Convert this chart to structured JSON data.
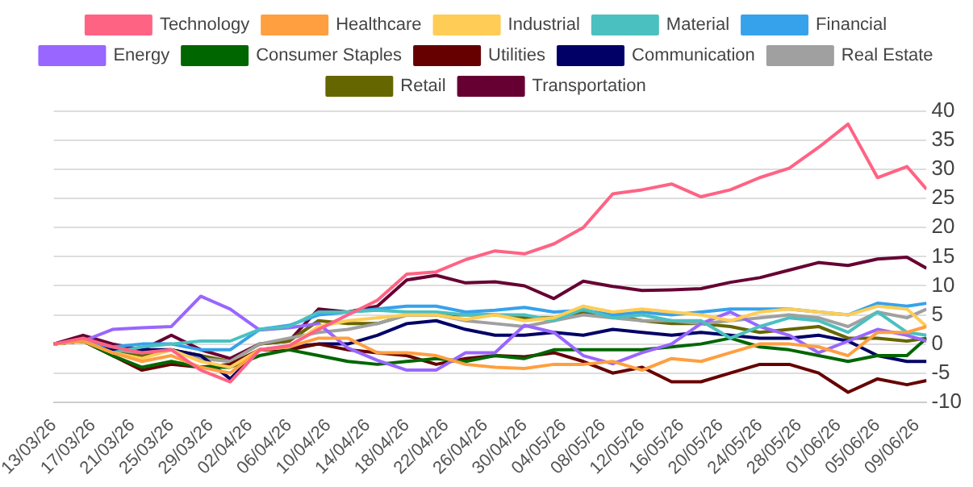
{
  "chart_data": {
    "type": "line",
    "x": [
      "--03-13",
      "--03-16",
      "--03-19",
      "--03-22",
      "--03-25",
      "--03-28",
      "--03-31",
      "--04-03",
      "--04-06",
      "--04-09",
      "--04-12",
      "--04-15",
      "--04-18",
      "--04-21",
      "--04-24",
      "--04-27",
      "--04-30",
      "--05-03",
      "--05-06",
      "--05-09",
      "--05-12",
      "--05-15",
      "--05-18",
      "--05-21",
      "--05-24",
      "--05-27",
      "--05-30",
      "--06-02",
      "--06-05",
      "--06-08",
      "--06-10"
    ],
    "series": [
      {
        "name": "Technology",
        "color": "#ff6384",
        "values": [
          0,
          1,
          -0.5,
          -1.5,
          -1,
          -4.5,
          -6.5,
          -1,
          -0.3,
          2.5,
          5,
          7.5,
          12,
          12.4,
          14.5,
          16,
          15.5,
          17.2,
          20,
          25.8,
          26.5,
          27.5,
          25.3,
          26.5,
          28.6,
          30.2,
          33.8,
          37.8,
          28.6,
          30.5,
          26.6
        ]
      },
      {
        "name": "Healthcare",
        "color": "#ff9f40",
        "values": [
          0,
          0.5,
          -1.5,
          -3,
          -2,
          -4,
          -5,
          -1,
          -0.5,
          1,
          1,
          -1.5,
          -1.5,
          -2,
          -3.5,
          -4,
          -4.2,
          -3.5,
          -3.5,
          -3,
          -4.5,
          -2.5,
          -3,
          -1.5,
          0,
          0,
          -0.5,
          -2,
          2,
          2,
          3
        ]
      },
      {
        "name": "Industrial",
        "color": "#ffcd56",
        "values": [
          0,
          0.5,
          -1.5,
          -2.5,
          -1,
          -3,
          -4,
          -1,
          -0.5,
          3,
          4,
          4.5,
          5,
          5,
          4.2,
          5,
          4,
          4.5,
          6.5,
          5.5,
          6,
          5.5,
          5,
          4,
          5.5,
          6,
          5.5,
          5,
          6.5,
          6,
          3
        ]
      },
      {
        "name": "Material",
        "color": "#4bc0c0",
        "values": [
          0,
          0.5,
          -1.5,
          -0.5,
          0,
          0.5,
          0.5,
          2.5,
          3,
          5.5,
          5.5,
          5.8,
          5.5,
          5.5,
          5,
          5,
          5,
          4,
          6,
          4.5,
          5,
          4,
          4,
          1,
          3,
          4.5,
          4,
          2,
          5.5,
          2,
          1.5
        ]
      },
      {
        "name": "Financial",
        "color": "#36a2eb",
        "values": [
          0,
          0.5,
          -0.5,
          0,
          0,
          -1,
          -1,
          2.5,
          3.2,
          5,
          5.5,
          6,
          6.5,
          6.5,
          5.5,
          5.8,
          6.3,
          5.5,
          5.8,
          5,
          5.5,
          5,
          5.5,
          6,
          6,
          6,
          5.5,
          5,
          7,
          6.5,
          7
        ]
      },
      {
        "name": "Energy",
        "color": "#9966ff",
        "values": [
          0,
          0.5,
          2.5,
          2.8,
          3,
          8.2,
          6,
          2.4,
          2.8,
          3.5,
          -0.7,
          -2.8,
          -4.5,
          -4.5,
          -1.5,
          -1.5,
          3.2,
          2,
          -2,
          -3.4,
          -1.5,
          0,
          3.5,
          5.5,
          3,
          1.5,
          -1.5,
          0.5,
          2.5,
          1.5,
          0.5
        ]
      },
      {
        "name": "Consumer Staples",
        "color": "#006600",
        "values": [
          0,
          0.5,
          -2,
          -4,
          -3,
          -4,
          -4,
          -2,
          -1,
          -2,
          -3,
          -3.5,
          -3,
          -2.5,
          -3,
          -2,
          -2.5,
          -1,
          -1,
          -1,
          -1,
          -0.5,
          0,
          1,
          -0.5,
          -1,
          -2,
          -3,
          -2,
          -2,
          1
        ]
      },
      {
        "name": "Utilities",
        "color": "#660000",
        "values": [
          0,
          0.5,
          -2,
          -4.5,
          -3.5,
          -4,
          -3.5,
          -1,
          -1,
          0,
          -1,
          -1.5,
          -2,
          -3.5,
          -2.5,
          -2,
          -2.2,
          -1.5,
          -3,
          -5,
          -4,
          -6.5,
          -6.5,
          -5,
          -3.5,
          -3.5,
          -5,
          -8.3,
          -6,
          -7,
          -6.3
        ]
      },
      {
        "name": "Communication",
        "color": "#000066",
        "values": [
          0,
          0.5,
          -1,
          -1,
          -1,
          -2,
          -6,
          -1,
          -0.5,
          0,
          0,
          1.5,
          3.5,
          4,
          2.5,
          1.5,
          1.5,
          2,
          1.5,
          2.5,
          2,
          1.5,
          2,
          1.5,
          1,
          1,
          1.5,
          0.5,
          -2,
          -3,
          -3
        ]
      },
      {
        "name": "Real Estate",
        "color": "#a0a0a0",
        "values": [
          0,
          0.5,
          -1,
          -1.5,
          -1,
          -2.5,
          -3,
          0,
          1,
          2,
          2.5,
          3.5,
          5,
          5,
          4,
          3.5,
          3,
          4,
          5,
          4.5,
          4,
          4,
          3.5,
          4,
          4.5,
          5,
          4.5,
          3,
          5.5,
          4.5,
          6
        ]
      },
      {
        "name": "Retail",
        "color": "#666600",
        "values": [
          0,
          0.5,
          -1,
          -2,
          -1,
          -2,
          -3,
          0,
          0.5,
          4,
          3.5,
          3.5,
          5,
          5,
          5,
          5,
          4.5,
          4.5,
          5.5,
          5,
          4,
          3.5,
          3.5,
          3,
          2,
          2.5,
          3,
          1,
          1,
          0.5,
          1
        ]
      },
      {
        "name": "Transportation",
        "color": "#660033",
        "values": [
          0,
          1.5,
          0,
          -1,
          1.5,
          -1,
          -2.5,
          0,
          0.5,
          6,
          5.5,
          6.5,
          11,
          11.8,
          10.5,
          10.7,
          10,
          7.8,
          10.8,
          9.9,
          9.2,
          9.3,
          9.5,
          10.6,
          11.4,
          12.7,
          14,
          13.5,
          14.6,
          14.9,
          13
        ]
      }
    ],
    "xlim": [
      "--03-13",
      "--06-10"
    ],
    "xticks": [
      {
        "value": "--03-13",
        "label": "13/03/26"
      },
      {
        "value": "--03-17",
        "label": "17/03/26"
      },
      {
        "value": "--03-21",
        "label": "21/03/26"
      },
      {
        "value": "--03-25",
        "label": "25/03/26"
      },
      {
        "value": "--03-29",
        "label": "29/03/26"
      },
      {
        "value": "--04-02",
        "label": "02/04/26"
      },
      {
        "value": "--04-06",
        "label": "06/04/26"
      },
      {
        "value": "--04-10",
        "label": "10/04/26"
      },
      {
        "value": "--04-14",
        "label": "14/04/26"
      },
      {
        "value": "--04-18",
        "label": "18/04/26"
      },
      {
        "value": "--04-22",
        "label": "22/04/26"
      },
      {
        "value": "--04-26",
        "label": "26/04/26"
      },
      {
        "value": "--04-30",
        "label": "30/04/26"
      },
      {
        "value": "--05-04",
        "label": "04/05/26"
      },
      {
        "value": "--05-08",
        "label": "08/05/26"
      },
      {
        "value": "--05-12",
        "label": "12/05/26"
      },
      {
        "value": "--05-16",
        "label": "16/05/26"
      },
      {
        "value": "--05-20",
        "label": "20/05/26"
      },
      {
        "value": "--05-24",
        "label": "24/05/26"
      },
      {
        "value": "--05-28",
        "label": "28/05/26"
      },
      {
        "value": "--06-01",
        "label": "01/06/26"
      },
      {
        "value": "--06-05",
        "label": "05/06/26"
      },
      {
        "value": "--06-09",
        "label": "09/06/26"
      }
    ],
    "ylim": [
      -10,
      40
    ],
    "yticks": [
      -10,
      -5,
      0,
      5,
      10,
      15,
      20,
      25,
      30,
      35,
      40
    ],
    "grid": "y",
    "legend": "top",
    "marker": "none",
    "line_style": "solid"
  }
}
